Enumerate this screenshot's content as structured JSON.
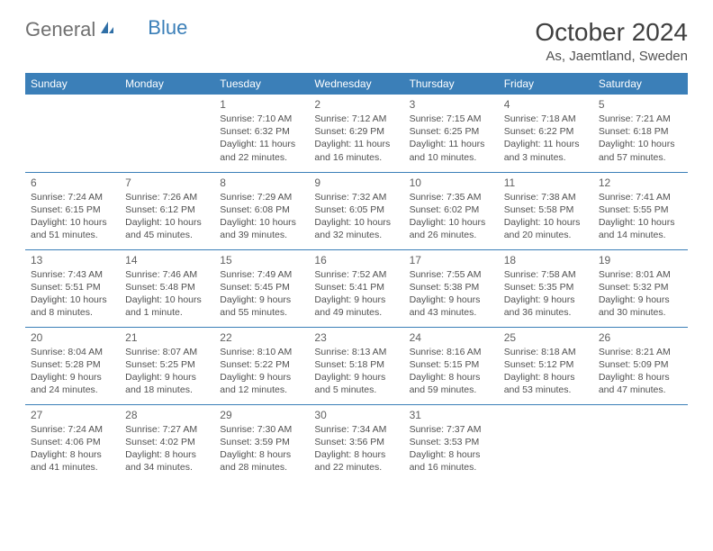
{
  "logo": {
    "gray": "General",
    "blue": "Blue"
  },
  "title": "October 2024",
  "location": "As, Jaemtland, Sweden",
  "colors": {
    "header_bg": "#3b7fb8",
    "header_text": "#ffffff",
    "border": "#3b7fb8",
    "body_bg": "#ffffff",
    "text": "#404040"
  },
  "days": [
    "Sunday",
    "Monday",
    "Tuesday",
    "Wednesday",
    "Thursday",
    "Friday",
    "Saturday"
  ],
  "weeks": [
    [
      null,
      null,
      {
        "n": "1",
        "sr": "Sunrise: 7:10 AM",
        "ss": "Sunset: 6:32 PM",
        "dl": "Daylight: 11 hours and 22 minutes."
      },
      {
        "n": "2",
        "sr": "Sunrise: 7:12 AM",
        "ss": "Sunset: 6:29 PM",
        "dl": "Daylight: 11 hours and 16 minutes."
      },
      {
        "n": "3",
        "sr": "Sunrise: 7:15 AM",
        "ss": "Sunset: 6:25 PM",
        "dl": "Daylight: 11 hours and 10 minutes."
      },
      {
        "n": "4",
        "sr": "Sunrise: 7:18 AM",
        "ss": "Sunset: 6:22 PM",
        "dl": "Daylight: 11 hours and 3 minutes."
      },
      {
        "n": "5",
        "sr": "Sunrise: 7:21 AM",
        "ss": "Sunset: 6:18 PM",
        "dl": "Daylight: 10 hours and 57 minutes."
      }
    ],
    [
      {
        "n": "6",
        "sr": "Sunrise: 7:24 AM",
        "ss": "Sunset: 6:15 PM",
        "dl": "Daylight: 10 hours and 51 minutes."
      },
      {
        "n": "7",
        "sr": "Sunrise: 7:26 AM",
        "ss": "Sunset: 6:12 PM",
        "dl": "Daylight: 10 hours and 45 minutes."
      },
      {
        "n": "8",
        "sr": "Sunrise: 7:29 AM",
        "ss": "Sunset: 6:08 PM",
        "dl": "Daylight: 10 hours and 39 minutes."
      },
      {
        "n": "9",
        "sr": "Sunrise: 7:32 AM",
        "ss": "Sunset: 6:05 PM",
        "dl": "Daylight: 10 hours and 32 minutes."
      },
      {
        "n": "10",
        "sr": "Sunrise: 7:35 AM",
        "ss": "Sunset: 6:02 PM",
        "dl": "Daylight: 10 hours and 26 minutes."
      },
      {
        "n": "11",
        "sr": "Sunrise: 7:38 AM",
        "ss": "Sunset: 5:58 PM",
        "dl": "Daylight: 10 hours and 20 minutes."
      },
      {
        "n": "12",
        "sr": "Sunrise: 7:41 AM",
        "ss": "Sunset: 5:55 PM",
        "dl": "Daylight: 10 hours and 14 minutes."
      }
    ],
    [
      {
        "n": "13",
        "sr": "Sunrise: 7:43 AM",
        "ss": "Sunset: 5:51 PM",
        "dl": "Daylight: 10 hours and 8 minutes."
      },
      {
        "n": "14",
        "sr": "Sunrise: 7:46 AM",
        "ss": "Sunset: 5:48 PM",
        "dl": "Daylight: 10 hours and 1 minute."
      },
      {
        "n": "15",
        "sr": "Sunrise: 7:49 AM",
        "ss": "Sunset: 5:45 PM",
        "dl": "Daylight: 9 hours and 55 minutes."
      },
      {
        "n": "16",
        "sr": "Sunrise: 7:52 AM",
        "ss": "Sunset: 5:41 PM",
        "dl": "Daylight: 9 hours and 49 minutes."
      },
      {
        "n": "17",
        "sr": "Sunrise: 7:55 AM",
        "ss": "Sunset: 5:38 PM",
        "dl": "Daylight: 9 hours and 43 minutes."
      },
      {
        "n": "18",
        "sr": "Sunrise: 7:58 AM",
        "ss": "Sunset: 5:35 PM",
        "dl": "Daylight: 9 hours and 36 minutes."
      },
      {
        "n": "19",
        "sr": "Sunrise: 8:01 AM",
        "ss": "Sunset: 5:32 PM",
        "dl": "Daylight: 9 hours and 30 minutes."
      }
    ],
    [
      {
        "n": "20",
        "sr": "Sunrise: 8:04 AM",
        "ss": "Sunset: 5:28 PM",
        "dl": "Daylight: 9 hours and 24 minutes."
      },
      {
        "n": "21",
        "sr": "Sunrise: 8:07 AM",
        "ss": "Sunset: 5:25 PM",
        "dl": "Daylight: 9 hours and 18 minutes."
      },
      {
        "n": "22",
        "sr": "Sunrise: 8:10 AM",
        "ss": "Sunset: 5:22 PM",
        "dl": "Daylight: 9 hours and 12 minutes."
      },
      {
        "n": "23",
        "sr": "Sunrise: 8:13 AM",
        "ss": "Sunset: 5:18 PM",
        "dl": "Daylight: 9 hours and 5 minutes."
      },
      {
        "n": "24",
        "sr": "Sunrise: 8:16 AM",
        "ss": "Sunset: 5:15 PM",
        "dl": "Daylight: 8 hours and 59 minutes."
      },
      {
        "n": "25",
        "sr": "Sunrise: 8:18 AM",
        "ss": "Sunset: 5:12 PM",
        "dl": "Daylight: 8 hours and 53 minutes."
      },
      {
        "n": "26",
        "sr": "Sunrise: 8:21 AM",
        "ss": "Sunset: 5:09 PM",
        "dl": "Daylight: 8 hours and 47 minutes."
      }
    ],
    [
      {
        "n": "27",
        "sr": "Sunrise: 7:24 AM",
        "ss": "Sunset: 4:06 PM",
        "dl": "Daylight: 8 hours and 41 minutes."
      },
      {
        "n": "28",
        "sr": "Sunrise: 7:27 AM",
        "ss": "Sunset: 4:02 PM",
        "dl": "Daylight: 8 hours and 34 minutes."
      },
      {
        "n": "29",
        "sr": "Sunrise: 7:30 AM",
        "ss": "Sunset: 3:59 PM",
        "dl": "Daylight: 8 hours and 28 minutes."
      },
      {
        "n": "30",
        "sr": "Sunrise: 7:34 AM",
        "ss": "Sunset: 3:56 PM",
        "dl": "Daylight: 8 hours and 22 minutes."
      },
      {
        "n": "31",
        "sr": "Sunrise: 7:37 AM",
        "ss": "Sunset: 3:53 PM",
        "dl": "Daylight: 8 hours and 16 minutes."
      },
      null,
      null
    ]
  ]
}
